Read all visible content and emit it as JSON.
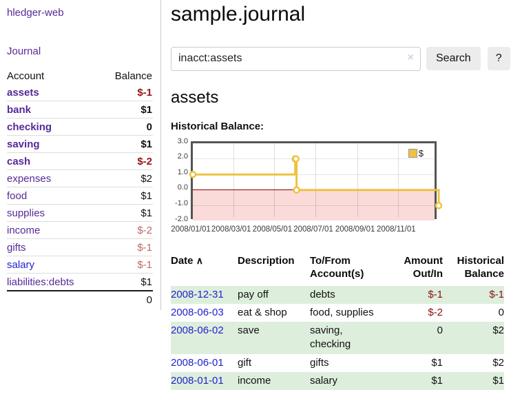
{
  "colors": {
    "accent_purple": "#552a97",
    "link_blue": "#2222cc",
    "negative_strong": "#941414",
    "negative_muted": "#bd6868",
    "register_negative": "#8b1111",
    "row_stripe_green": "#ddeedd",
    "series_yellow": "#edc240",
    "negative_region_pink": "#fbdada",
    "zero_line_red": "#8b0000",
    "chart_border_gray": "#545454"
  },
  "sidebar": {
    "brand": "hledger-web",
    "nav": {
      "journal": "Journal"
    },
    "table": {
      "account_header": "Account",
      "balance_header": "Balance",
      "rows": [
        {
          "account": "assets",
          "balance": "$-1",
          "depth": 1,
          "matched": true,
          "balance_tone": "negative-strong",
          "link_tone": "visited"
        },
        {
          "account": "bank",
          "balance": "$1",
          "depth": 2,
          "matched": true,
          "balance_tone": "normal",
          "link_tone": "visited"
        },
        {
          "account": "checking",
          "balance": "0",
          "depth": 3,
          "matched": true,
          "balance_tone": "normal",
          "link_tone": "visited"
        },
        {
          "account": "saving",
          "balance": "$1",
          "depth": 3,
          "matched": true,
          "balance_tone": "normal",
          "link_tone": "visited"
        },
        {
          "account": "cash",
          "balance": "$-2",
          "depth": 2,
          "matched": true,
          "balance_tone": "negative-strong",
          "link_tone": "visited"
        },
        {
          "account": "expenses",
          "balance": "$2",
          "depth": 1,
          "matched": false,
          "balance_tone": "normal",
          "link_tone": "visited"
        },
        {
          "account": "food",
          "balance": "$1",
          "depth": 2,
          "matched": false,
          "balance_tone": "normal",
          "link_tone": "visited"
        },
        {
          "account": "supplies",
          "balance": "$1",
          "depth": 2,
          "matched": false,
          "balance_tone": "normal",
          "link_tone": "visited"
        },
        {
          "account": "income",
          "balance": "$-2",
          "depth": 1,
          "matched": false,
          "balance_tone": "negative-muted",
          "link_tone": "visited"
        },
        {
          "account": "gifts",
          "balance": "$-1",
          "depth": 2,
          "matched": false,
          "balance_tone": "negative-muted",
          "link_tone": "visited"
        },
        {
          "account": "salary",
          "balance": "$-1",
          "depth": 2,
          "matched": false,
          "balance_tone": "negative-muted",
          "link_tone": "unvisited"
        },
        {
          "account": "liabilities:debts",
          "balance": "$1",
          "depth": 1,
          "matched": false,
          "balance_tone": "normal",
          "link_tone": "visited"
        }
      ],
      "total": "0"
    }
  },
  "main": {
    "title": "sample.journal",
    "search": {
      "query": "inacct:assets",
      "clear_label": "×",
      "search_button": "Search",
      "help_button": "?"
    },
    "account_heading": "assets",
    "chart_label": "Historical Balance:"
  },
  "chart_data": {
    "type": "line",
    "step": true,
    "title": "Historical Balance:",
    "series": [
      {
        "name": "$",
        "color": "#edc240",
        "points": [
          [
            "2008-01-01",
            1
          ],
          [
            "2008-06-01",
            2
          ],
          [
            "2008-06-02",
            2
          ],
          [
            "2008-06-03",
            0
          ],
          [
            "2008-12-31",
            -1
          ]
        ]
      }
    ],
    "xlim": [
      "2008-01-01",
      "2008-12-31"
    ],
    "ylim": [
      -2,
      3
    ],
    "yticks": [
      "3.0",
      "2.0",
      "1.0",
      "0.0",
      "-1.0",
      "-2.0"
    ],
    "xticks": [
      "2008/01/01",
      "2008/03/01",
      "2008/05/01",
      "2008/07/01",
      "2008/09/01",
      "2008/11/01"
    ],
    "grid": true,
    "legend_position": "top-right",
    "negative_region_below": 0
  },
  "register": {
    "headers": {
      "date": "Date",
      "sort_indicator": "∧",
      "description": "Description",
      "tofrom": "To/From Account(s)",
      "amount": "Amount Out/In",
      "balance": "Historical Balance"
    },
    "rows": [
      {
        "date": "2008-12-31",
        "description": "pay off",
        "accounts": "debts",
        "amount": "$-1",
        "balance": "$-1"
      },
      {
        "date": "2008-06-03",
        "description": "eat & shop",
        "accounts": "food, supplies",
        "amount": "$-2",
        "balance": "0"
      },
      {
        "date": "2008-06-02",
        "description": "save",
        "accounts": "saving, checking",
        "amount": "0",
        "balance": "$2"
      },
      {
        "date": "2008-06-01",
        "description": "gift",
        "accounts": "gifts",
        "amount": "$1",
        "balance": "$2"
      },
      {
        "date": "2008-01-01",
        "description": "income",
        "accounts": "salary",
        "amount": "$1",
        "balance": "$1"
      }
    ]
  }
}
